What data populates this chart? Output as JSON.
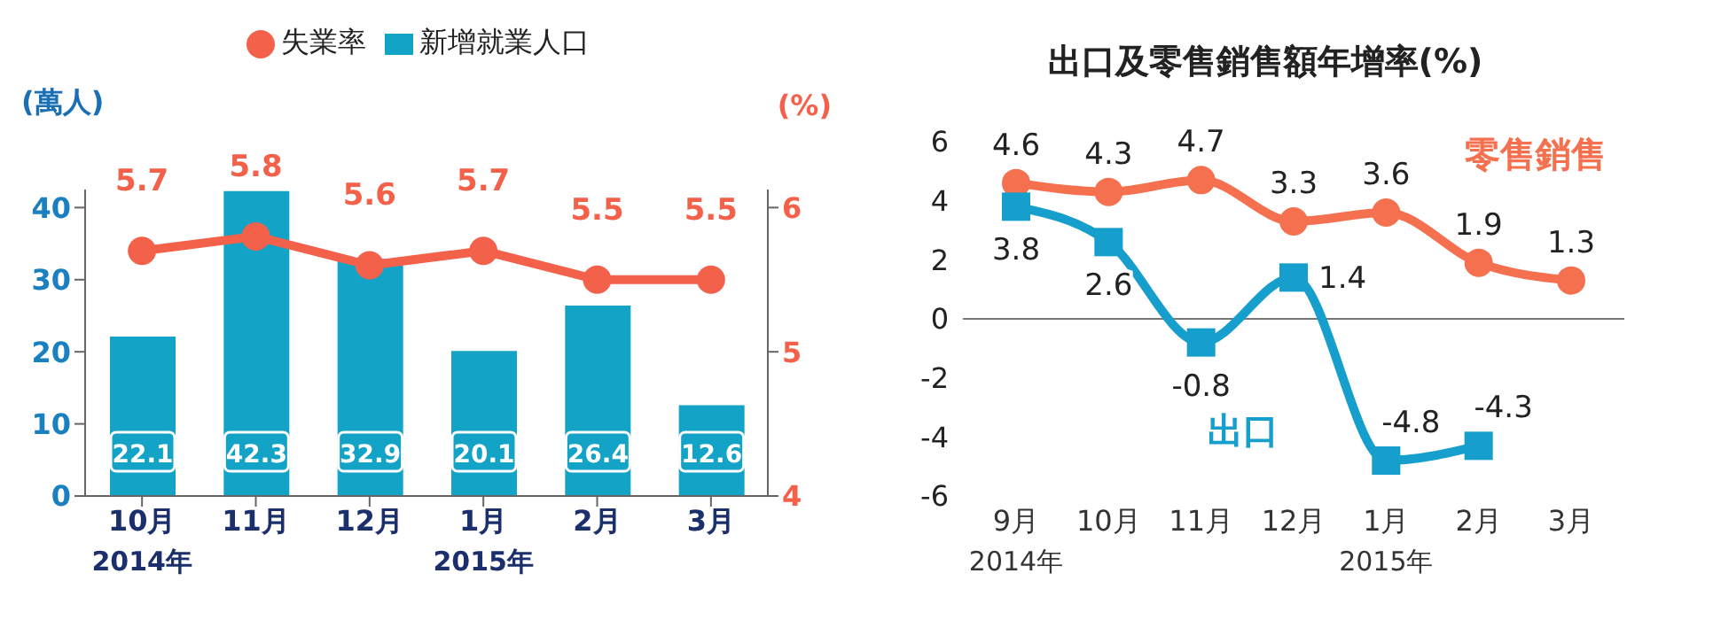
{
  "chart_data": [
    {
      "type": "bar",
      "categories": [
        "10月",
        "11月",
        "12月",
        "1月",
        "2月",
        "3月"
      ],
      "series": [
        {
          "name": "新增就業人口",
          "type": "bar",
          "color": "#12a3c6",
          "values": [
            22.1,
            42.3,
            32.9,
            20.1,
            26.4,
            12.6
          ]
        },
        {
          "name": "失業率",
          "type": "line",
          "axis": "y2",
          "marker": "circle",
          "color": "#f4614a",
          "values": [
            5.7,
            5.8,
            5.6,
            5.7,
            5.5,
            5.5
          ]
        }
      ],
      "ylabel": "(萬人)",
      "y2label": "(%)",
      "ylim": [
        0,
        42.5
      ],
      "yticks": [
        0,
        10,
        20,
        30,
        40
      ],
      "y2lim": [
        4,
        6.125
      ],
      "y2ticks": [
        4,
        5,
        6
      ],
      "legend": "top",
      "data_labels": true,
      "grid": false,
      "annotations": [
        "2014年",
        "2015年"
      ]
    },
    {
      "type": "line",
      "title": "出口及零售銷售額年增率(%)",
      "categories": [
        "9月",
        "10月",
        "11月",
        "12月",
        "1月",
        "2月",
        "3月"
      ],
      "series": [
        {
          "name": "零售銷售",
          "color": "#f4704f",
          "marker": "circle",
          "values": [
            4.6,
            4.3,
            4.7,
            3.3,
            3.6,
            1.9,
            1.3
          ]
        },
        {
          "name": "出口",
          "color": "#169fcc",
          "marker": "square",
          "values": [
            3.8,
            2.6,
            -0.8,
            1.4,
            -4.8,
            -4.3,
            null
          ]
        }
      ],
      "ylim": [
        -6,
        6
      ],
      "yticks": [
        -6,
        -4,
        -2,
        0,
        2,
        4,
        6
      ],
      "ref_lines": [
        {
          "axis": "y",
          "value": 0
        }
      ],
      "legend": false,
      "data_labels": true,
      "grid": false,
      "annotations": [
        "2014年",
        "2015年"
      ]
    }
  ]
}
